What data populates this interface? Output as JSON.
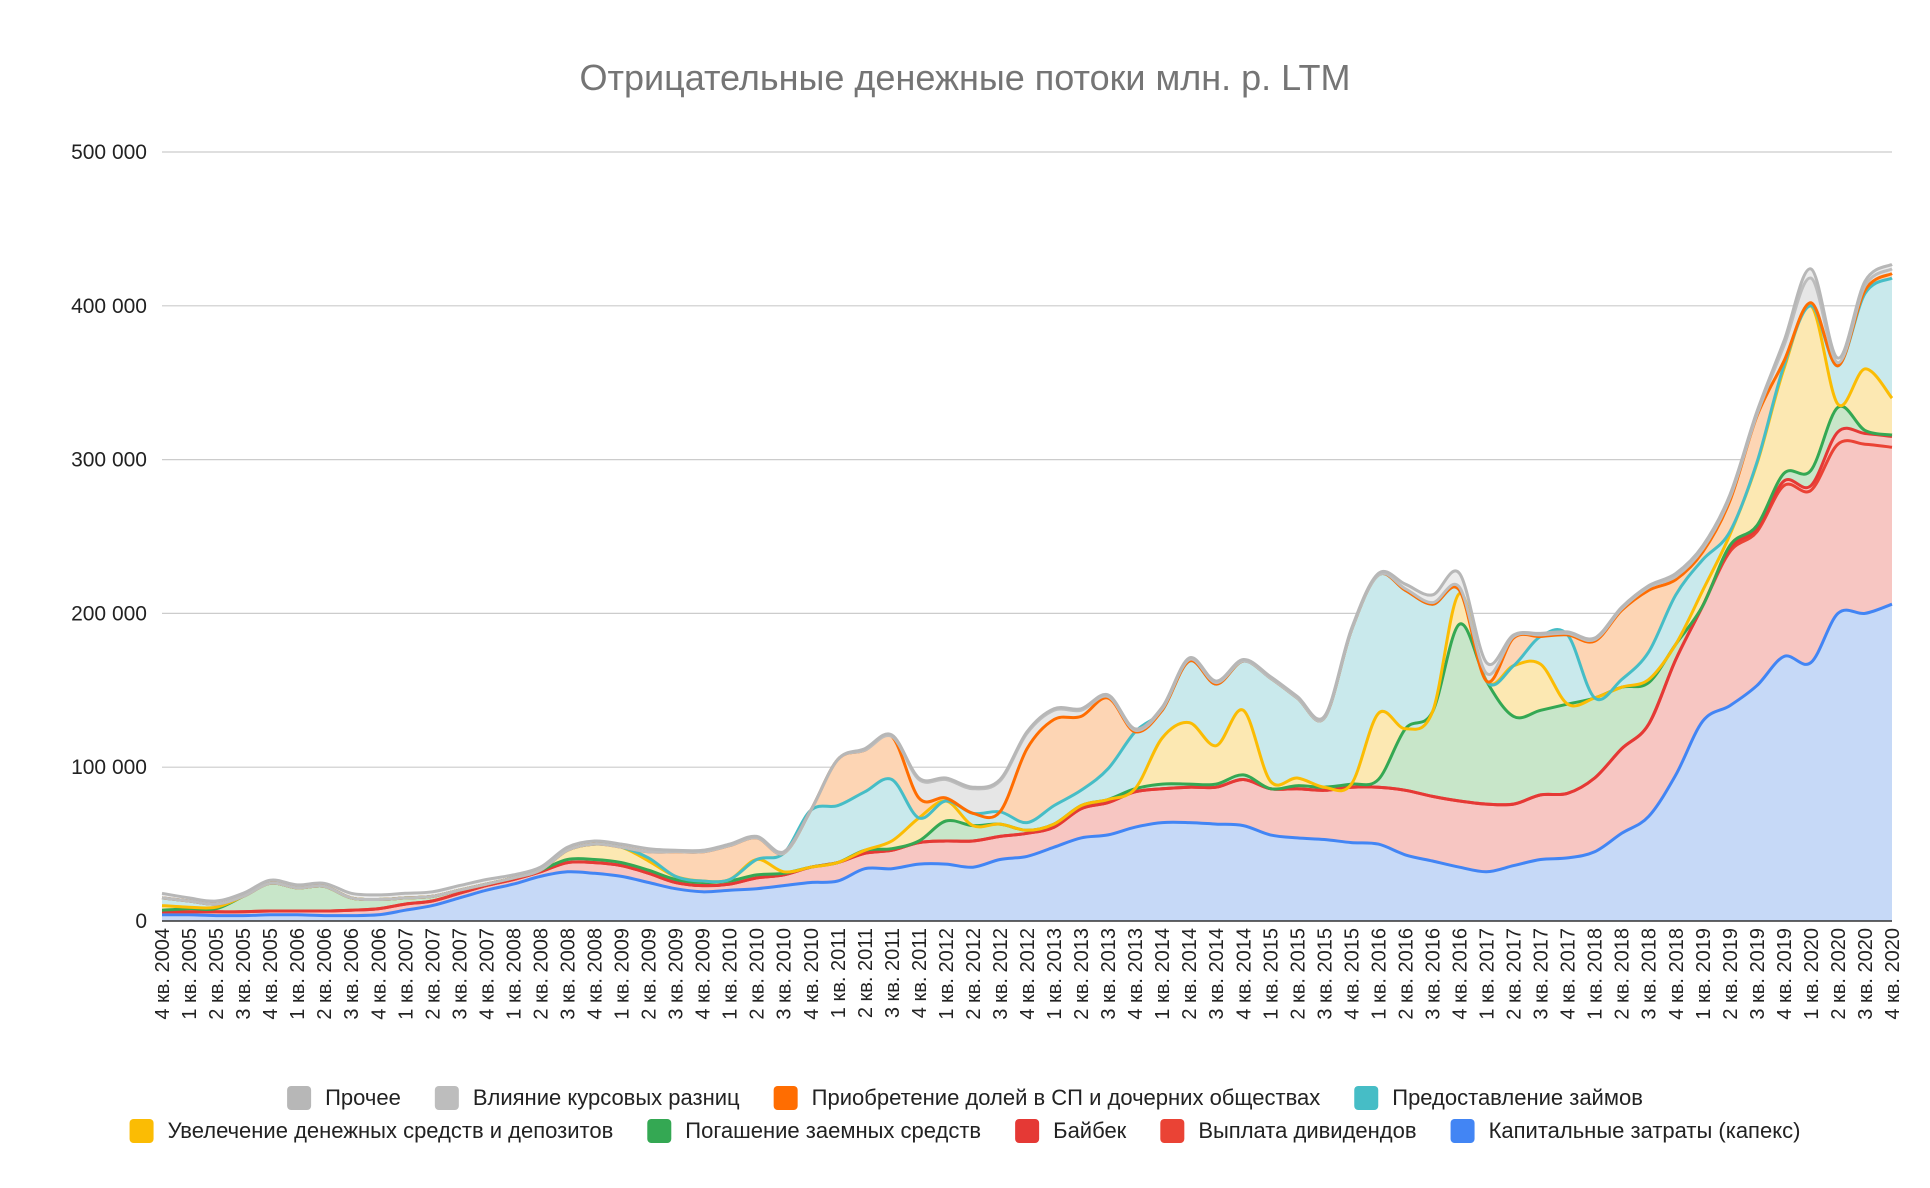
{
  "chart_data": {
    "type": "area",
    "stacked": true,
    "smooth": true,
    "title": "Отрицательные денежные потоки млн. р. LTM",
    "xlabel": "",
    "ylabel": "",
    "ylim": [
      0,
      500000
    ],
    "yticks": [
      0,
      100000,
      200000,
      300000,
      400000,
      500000
    ],
    "ytick_labels": [
      "0",
      "100 000",
      "200 000",
      "300 000",
      "400 000",
      "500 000"
    ],
    "grid": true,
    "legend_position": "bottom",
    "categories": [
      "4 кв. 2004",
      "1 кв. 2005",
      "2 кв. 2005",
      "3 кв. 2005",
      "4 кв. 2005",
      "1 кв. 2006",
      "2 кв. 2006",
      "3 кв. 2006",
      "4 кв. 2006",
      "1 кв. 2007",
      "2 кв. 2007",
      "3 кв. 2007",
      "4 кв. 2007",
      "1 кв. 2008",
      "2 кв. 2008",
      "3 кв. 2008",
      "4 кв. 2008",
      "1 кв. 2009",
      "2 кв. 2009",
      "3 кв. 2009",
      "4 кв. 2009",
      "1 кв. 2010",
      "2 кв. 2010",
      "3 кв. 2010",
      "4 кв. 2010",
      "1 кв. 2011",
      "2 кв. 2011",
      "3 кв. 2011",
      "4 кв. 2011",
      "1 кв. 2012",
      "2 кв. 2012",
      "3 кв. 2012",
      "4 кв. 2012",
      "1 кв. 2013",
      "2 кв. 2013",
      "3 кв. 2013",
      "4 кв. 2013",
      "1 кв. 2014",
      "2 кв. 2014",
      "3 кв. 2014",
      "4 кв. 2014",
      "1 кв. 2015",
      "2 кв. 2015",
      "3 кв. 2015",
      "4 кв. 2015",
      "1 кв. 2016",
      "2 кв. 2016",
      "3 кв. 2016",
      "4 кв. 2016",
      "1 кв. 2017",
      "2 кв. 2017",
      "3 кв. 2017",
      "4 кв. 2017",
      "1 кв. 2018",
      "2 кв. 2018",
      "3 кв. 2018",
      "4 кв. 2018",
      "1 кв. 2019",
      "2 кв. 2019",
      "3 кв. 2019",
      "4 кв. 2019",
      "1 кв. 2020",
      "2 кв. 2020",
      "3 кв. 2020",
      "4 кв. 2020"
    ],
    "series": [
      {
        "name": "Капитальные затраты (капекс)",
        "color": "#4285f4",
        "fill": "#c6d9f7",
        "values": [
          4000,
          4000,
          3500,
          3500,
          4000,
          4000,
          3500,
          3500,
          4000,
          7000,
          10000,
          15000,
          20000,
          24000,
          29000,
          32000,
          31000,
          29000,
          25000,
          21000,
          19000,
          20000,
          21000,
          23000,
          25000,
          26000,
          34000,
          34000,
          37000,
          37000,
          35000,
          40000,
          42000,
          48000,
          54000,
          56000,
          61000,
          64000,
          64000,
          63000,
          62000,
          56000,
          54000,
          53000,
          51000,
          50000,
          43000,
          39000,
          35000,
          32000,
          36000,
          40000,
          41000,
          45000,
          57000,
          68000,
          95000,
          130000,
          140000,
          153000,
          172000,
          168000,
          200000,
          200000,
          206000
        ]
      },
      {
        "name": "Выплата дивидендов",
        "color": "#ea4335",
        "fill": "#f7c6c2",
        "values": [
          2000,
          2000,
          2500,
          2500,
          2500,
          2500,
          3000,
          3500,
          4000,
          4000,
          3000,
          3000,
          3000,
          3000,
          3000,
          6000,
          7000,
          7000,
          6000,
          4000,
          4000,
          4000,
          7000,
          7000,
          10000,
          12000,
          10000,
          12000,
          14000,
          15000,
          17000,
          15000,
          15000,
          13000,
          19000,
          21000,
          23000,
          22000,
          23000,
          24000,
          30000,
          30000,
          32000,
          32000,
          36000,
          37000,
          42000,
          42000,
          43000,
          44000,
          40000,
          42000,
          42000,
          48000,
          55000,
          60000,
          75000,
          75000,
          100000,
          100000,
          111000,
          112000,
          110000,
          110000,
          102000
        ]
      },
      {
        "name": "Байбек",
        "color": "#e53935",
        "fill": "#f7c6c2",
        "values": [
          0,
          0,
          0,
          0,
          0,
          0,
          0,
          0,
          0,
          0,
          0,
          0,
          0,
          0,
          0,
          0,
          0,
          0,
          0,
          0,
          0,
          0,
          0,
          0,
          0,
          0,
          0,
          0,
          0,
          0,
          0,
          0,
          0,
          0,
          0,
          0,
          0,
          0,
          0,
          0,
          0,
          0,
          0,
          0,
          0,
          0,
          0,
          0,
          0,
          0,
          0,
          0,
          0,
          0,
          0,
          0,
          0,
          0,
          2000,
          2000,
          3000,
          3000,
          8000,
          7000,
          7000
        ]
      },
      {
        "name": "Погашение заемных средств",
        "color": "#34a853",
        "fill": "#c8e6c9",
        "values": [
          1000,
          2000,
          2000,
          10000,
          18000,
          15000,
          16000,
          8000,
          6000,
          4000,
          3000,
          2000,
          1000,
          1000,
          1000,
          2000,
          2000,
          2000,
          2000,
          2000,
          2000,
          2000,
          2000,
          1000,
          0,
          0,
          2000,
          1000,
          1000,
          13000,
          10000,
          8000,
          2000,
          2000,
          2000,
          2000,
          2000,
          3000,
          2000,
          2000,
          3000,
          0,
          2000,
          2000,
          2000,
          5000,
          40000,
          55000,
          115000,
          80000,
          57000,
          55000,
          58000,
          52000,
          40000,
          27000,
          10000,
          0,
          2000,
          2000,
          5000,
          10000,
          16000,
          2000,
          1000
        ]
      },
      {
        "name": "Увелечение денежных средств и депозитов",
        "color": "#fbbc04",
        "fill": "#fce8b2",
        "values": [
          3000,
          1000,
          1000,
          0,
          0,
          0,
          0,
          0,
          0,
          0,
          0,
          0,
          0,
          0,
          0,
          6000,
          10000,
          10000,
          6000,
          2000,
          1000,
          1000,
          10000,
          1000,
          0,
          0,
          0,
          5000,
          15000,
          13000,
          0,
          0,
          0,
          0,
          0,
          0,
          0,
          30000,
          40000,
          25000,
          42000,
          5000,
          5000,
          0,
          0,
          43000,
          0,
          0,
          20000,
          0,
          33000,
          30000,
          0,
          0,
          0,
          2000,
          0,
          10000,
          7000,
          40000,
          68000,
          107000,
          2000,
          40000,
          24000
        ]
      },
      {
        "name": "Предоставление займов",
        "color": "#46bdc6",
        "fill": "#c9e9ec",
        "values": [
          5000,
          4000,
          2000,
          0,
          0,
          0,
          0,
          0,
          0,
          0,
          0,
          0,
          0,
          0,
          0,
          0,
          0,
          0,
          2000,
          0,
          0,
          0,
          0,
          12000,
          37000,
          37000,
          38000,
          40000,
          0,
          0,
          8000,
          8000,
          5000,
          12000,
          10000,
          20000,
          37000,
          18000,
          40000,
          40000,
          32000,
          67000,
          52000,
          45000,
          100000,
          90000,
          90000,
          70000,
          2000,
          0,
          0,
          18000,
          45000,
          0,
          5000,
          18000,
          32000,
          20000,
          2000,
          1000,
          2000,
          0,
          25000,
          49000,
          78000
        ]
      },
      {
        "name": "Приобретение долей в СП и дочерних обществах",
        "color": "#ff6d01",
        "fill": "#fdd5b4",
        "values": [
          0,
          0,
          0,
          0,
          0,
          0,
          0,
          0,
          0,
          0,
          0,
          0,
          0,
          0,
          0,
          0,
          0,
          0,
          4000,
          16000,
          19000,
          22000,
          14000,
          0,
          0,
          30000,
          27000,
          28000,
          13000,
          2000,
          0,
          0,
          48000,
          56000,
          48000,
          46000,
          0,
          0,
          0,
          0,
          0,
          0,
          0,
          0,
          0,
          0,
          0,
          0,
          0,
          0,
          18000,
          0,
          0,
          37000,
          45000,
          40000,
          10000,
          5000,
          20000,
          30000,
          3000,
          2000,
          0,
          2000,
          3000
        ]
      },
      {
        "name": "Влияние курсовых разниц",
        "color": "#bdbdbd",
        "fill": "#e6e6e6",
        "values": [
          0,
          0,
          0,
          0,
          0,
          0,
          0,
          0,
          0,
          0,
          0,
          0,
          0,
          0,
          0,
          0,
          0,
          0,
          0,
          0,
          0,
          0,
          0,
          0,
          0,
          0,
          0,
          0,
          12000,
          12000,
          16000,
          20000,
          10000,
          6000,
          4000,
          1000,
          1000,
          1000,
          1000,
          1000,
          0,
          0,
          0,
          0,
          0,
          0,
          1000,
          1000,
          2000,
          5000,
          1000,
          1000,
          1000,
          1000,
          1000,
          2000,
          2000,
          2000,
          2000,
          1000,
          10000,
          16000,
          2000,
          3000,
          3000
        ]
      },
      {
        "name": "Прочее",
        "color": "#b7b7b7",
        "fill": "#ececec",
        "values": [
          3000,
          2000,
          2000,
          2000,
          2000,
          2000,
          2000,
          3000,
          3000,
          3000,
          3000,
          3000,
          3000,
          2000,
          2000,
          2000,
          2000,
          2000,
          2000,
          1000,
          1000,
          1000,
          1000,
          1000,
          0,
          0,
          1000,
          1000,
          1000,
          1000,
          1000,
          1000,
          1000,
          1000,
          1000,
          1000,
          1000,
          1000,
          1000,
          1000,
          1000,
          1000,
          1000,
          1000,
          1000,
          1000,
          3000,
          5000,
          9000,
          7000,
          1000,
          1000,
          1000,
          1000,
          1000,
          1000,
          2000,
          2000,
          2000,
          2000,
          3000,
          6000,
          3000,
          3000,
          3000
        ]
      }
    ],
    "legend": [
      [
        "Прочее",
        "Влияние курсовых разниц",
        "Приобретение долей в СП и дочерних обществах",
        "Предоставление займов"
      ],
      [
        "Увелечение денежных средств и депозитов",
        "Погашение заемных средств",
        "Байбек",
        "Выплата дивидендов",
        "Капитальные затраты (капекс)"
      ]
    ]
  }
}
